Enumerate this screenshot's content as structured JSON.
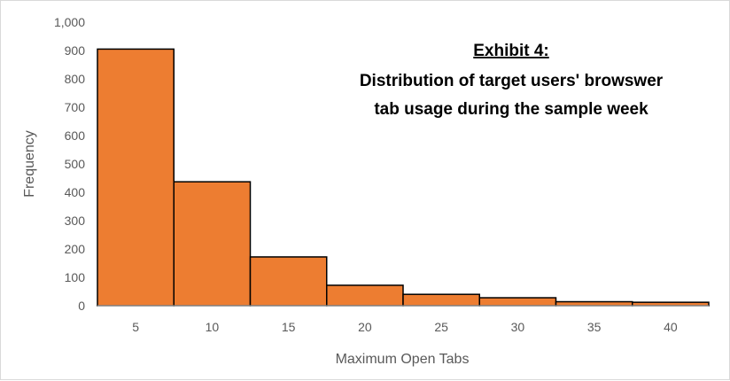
{
  "chart_data": {
    "type": "bar",
    "title": "Exhibit 4:",
    "subtitle_lines": [
      "Distribution of target users' browswer",
      "tab usage during the sample week"
    ],
    "xlabel": "Maximum Open Tabs",
    "ylabel": "Frequency",
    "categories": [
      "5",
      "10",
      "15",
      "20",
      "25",
      "30",
      "35",
      "40"
    ],
    "values": [
      905,
      437,
      172,
      72,
      40,
      28,
      14,
      12
    ],
    "ylim": [
      0,
      1000
    ],
    "yticks": [
      "0",
      "100",
      "200",
      "300",
      "400",
      "500",
      "600",
      "700",
      "800",
      "900",
      "1,000"
    ],
    "bar_color": "#ED7D31",
    "bar_edge_color": "#000000",
    "grid": false,
    "legend": "none"
  }
}
